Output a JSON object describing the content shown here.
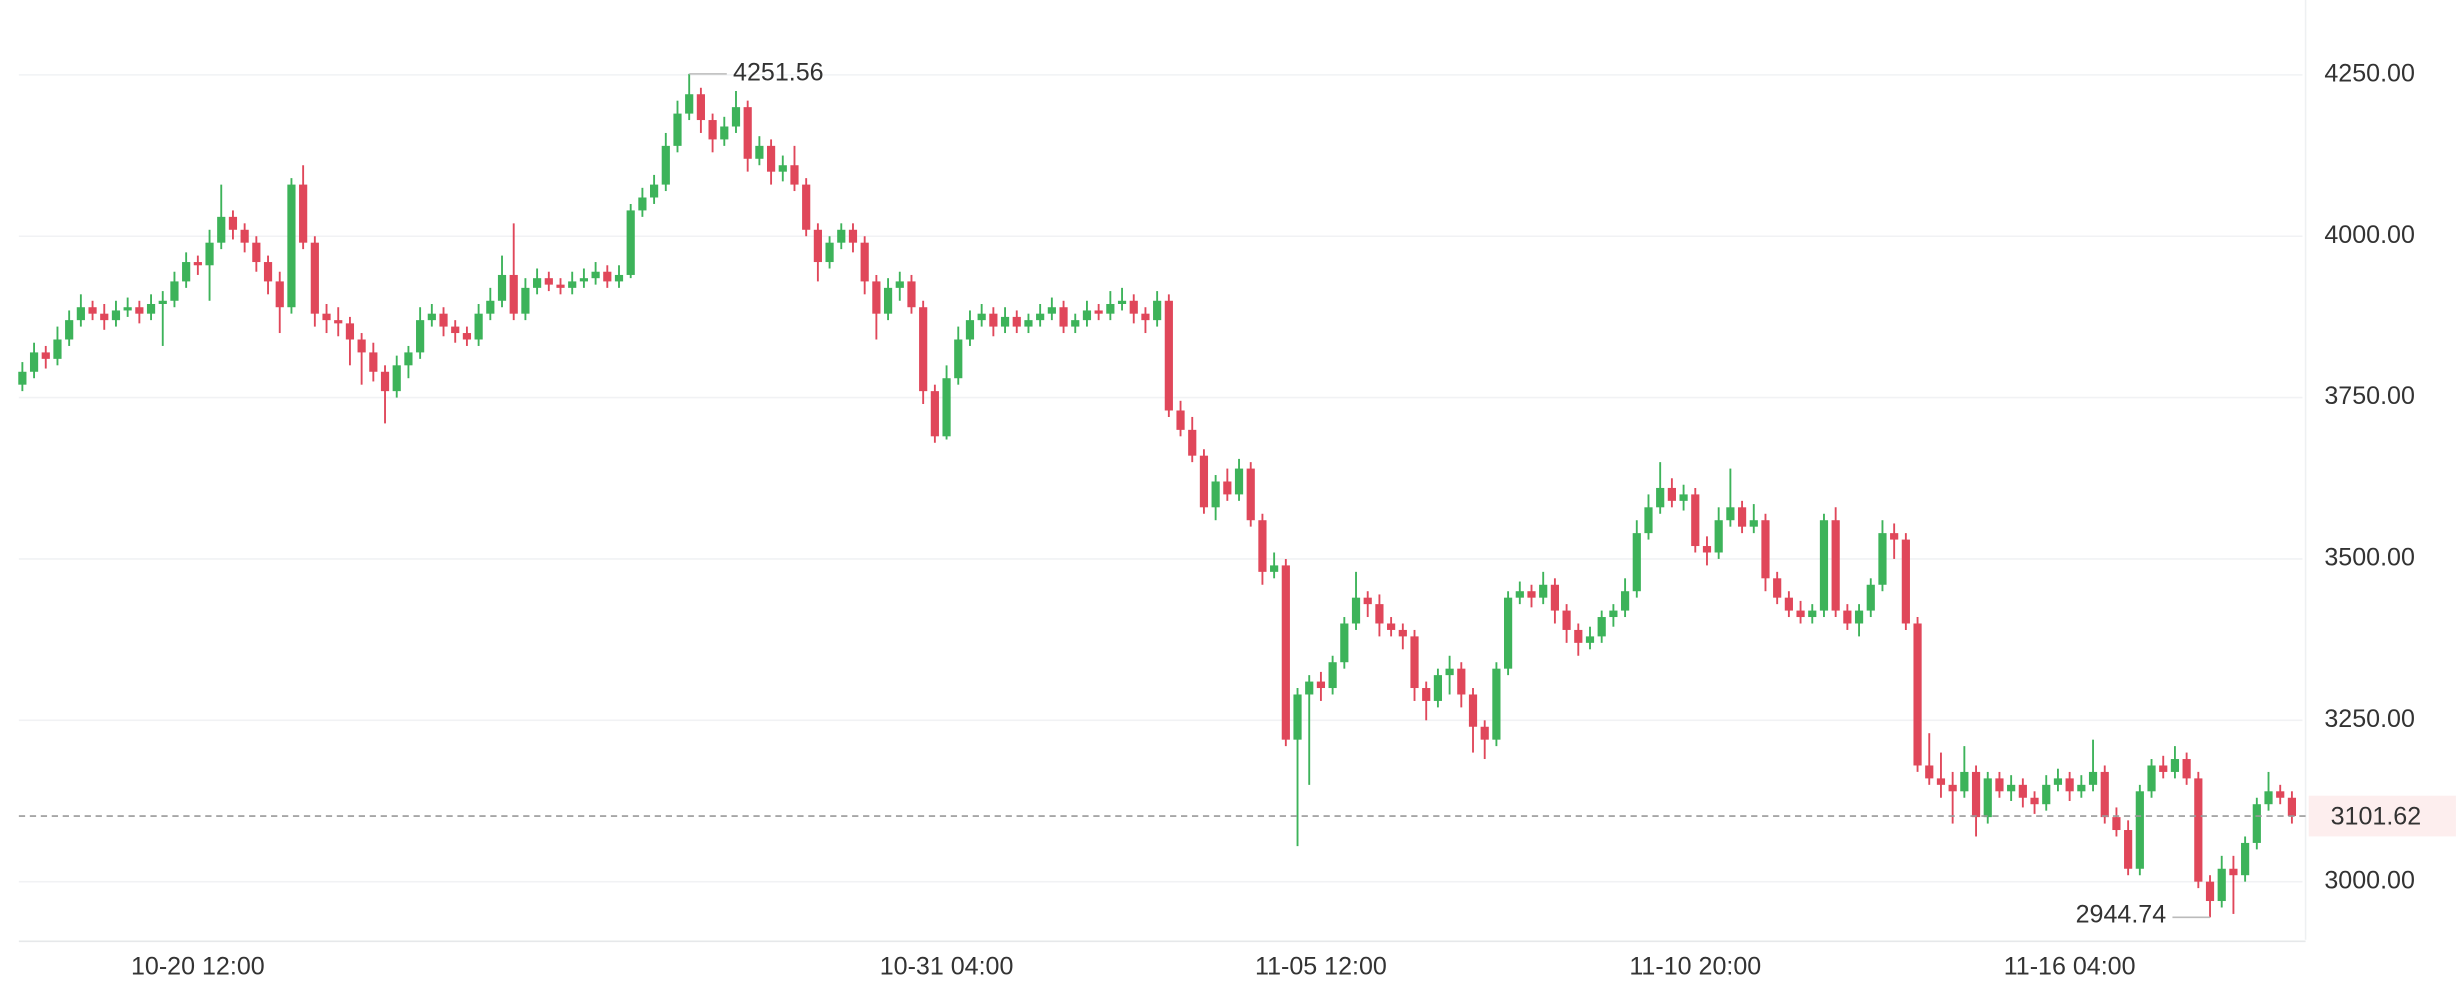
{
  "chart_data": {
    "type": "candlestick",
    "up_color": "#3db35a",
    "down_color": "#e0475a",
    "grid": true,
    "last_price_line": true,
    "xlim": [
      -0.3,
      194.9
    ],
    "ylim": [
      2910,
      4366
    ],
    "yticks": [
      {
        "value": 3000,
        "label": "3000.00"
      },
      {
        "value": 3250,
        "label": "3250.00"
      },
      {
        "value": 3500,
        "label": "3500.00"
      },
      {
        "value": 3750,
        "label": "3750.00"
      },
      {
        "value": 4000,
        "label": "4000.00"
      },
      {
        "value": 4250,
        "label": "4250.00"
      }
    ],
    "xticks": [
      {
        "value": 15,
        "label": "10-20 12:00"
      },
      {
        "value": 79,
        "label": "10-31 04:00"
      },
      {
        "value": 111,
        "label": "11-05 12:00"
      },
      {
        "value": 143,
        "label": "11-10 20:00"
      },
      {
        "value": 175,
        "label": "11-16 04:00"
      }
    ],
    "ohlc": [
      [
        3770,
        3805,
        3760,
        3790
      ],
      [
        3790,
        3835,
        3780,
        3820
      ],
      [
        3820,
        3830,
        3795,
        3810
      ],
      [
        3810,
        3860,
        3800,
        3840
      ],
      [
        3840,
        3885,
        3830,
        3870
      ],
      [
        3870,
        3910,
        3860,
        3890
      ],
      [
        3890,
        3900,
        3870,
        3880
      ],
      [
        3880,
        3895,
        3855,
        3870
      ],
      [
        3870,
        3900,
        3860,
        3885
      ],
      [
        3885,
        3905,
        3875,
        3890
      ],
      [
        3890,
        3900,
        3865,
        3880
      ],
      [
        3880,
        3910,
        3870,
        3895
      ],
      [
        3895,
        3915,
        3830,
        3900
      ],
      [
        3900,
        3945,
        3890,
        3930
      ],
      [
        3930,
        3975,
        3920,
        3960
      ],
      [
        3960,
        3970,
        3940,
        3955
      ],
      [
        3955,
        4010,
        3900,
        3990
      ],
      [
        3990,
        4080,
        3980,
        4030
      ],
      [
        4030,
        4040,
        3995,
        4010
      ],
      [
        4010,
        4020,
        3975,
        3990
      ],
      [
        3990,
        4000,
        3945,
        3960
      ],
      [
        3960,
        3970,
        3910,
        3930
      ],
      [
        3930,
        3945,
        3850,
        3890
      ],
      [
        3890,
        4090,
        3880,
        4080
      ],
      [
        4080,
        4110,
        3980,
        3990
      ],
      [
        3990,
        4000,
        3860,
        3880
      ],
      [
        3880,
        3895,
        3850,
        3870
      ],
      [
        3870,
        3890,
        3845,
        3865
      ],
      [
        3865,
        3875,
        3800,
        3840
      ],
      [
        3840,
        3850,
        3770,
        3820
      ],
      [
        3820,
        3835,
        3775,
        3790
      ],
      [
        3790,
        3800,
        3710,
        3760
      ],
      [
        3760,
        3815,
        3750,
        3800
      ],
      [
        3800,
        3830,
        3780,
        3820
      ],
      [
        3820,
        3890,
        3810,
        3870
      ],
      [
        3870,
        3895,
        3860,
        3880
      ],
      [
        3880,
        3890,
        3845,
        3860
      ],
      [
        3860,
        3870,
        3835,
        3850
      ],
      [
        3850,
        3860,
        3830,
        3840
      ],
      [
        3840,
        3895,
        3830,
        3880
      ],
      [
        3880,
        3920,
        3870,
        3900
      ],
      [
        3900,
        3970,
        3890,
        3940
      ],
      [
        3940,
        4020,
        3870,
        3880
      ],
      [
        3880,
        3935,
        3870,
        3920
      ],
      [
        3920,
        3950,
        3910,
        3935
      ],
      [
        3935,
        3945,
        3915,
        3925
      ],
      [
        3925,
        3935,
        3910,
        3920
      ],
      [
        3920,
        3945,
        3910,
        3930
      ],
      [
        3930,
        3950,
        3920,
        3935
      ],
      [
        3935,
        3960,
        3925,
        3945
      ],
      [
        3945,
        3955,
        3920,
        3930
      ],
      [
        3930,
        3955,
        3920,
        3940
      ],
      [
        3940,
        4050,
        3935,
        4040
      ],
      [
        4040,
        4075,
        4030,
        4060
      ],
      [
        4060,
        4095,
        4050,
        4080
      ],
      [
        4080,
        4160,
        4070,
        4140
      ],
      [
        4140,
        4210,
        4130,
        4190
      ],
      [
        4190,
        4251.56,
        4180,
        4220
      ],
      [
        4220,
        4230,
        4160,
        4180
      ],
      [
        4180,
        4190,
        4130,
        4150
      ],
      [
        4150,
        4185,
        4140,
        4170
      ],
      [
        4170,
        4225,
        4160,
        4200
      ],
      [
        4200,
        4210,
        4100,
        4120
      ],
      [
        4120,
        4155,
        4110,
        4140
      ],
      [
        4140,
        4150,
        4080,
        4100
      ],
      [
        4100,
        4125,
        4085,
        4110
      ],
      [
        4110,
        4140,
        4070,
        4080
      ],
      [
        4080,
        4090,
        4000,
        4010
      ],
      [
        4010,
        4020,
        3930,
        3960
      ],
      [
        3960,
        4000,
        3950,
        3990
      ],
      [
        3990,
        4020,
        3980,
        4010
      ],
      [
        4010,
        4020,
        3975,
        3990
      ],
      [
        3990,
        4000,
        3910,
        3930
      ],
      [
        3930,
        3940,
        3840,
        3880
      ],
      [
        3880,
        3935,
        3870,
        3920
      ],
      [
        3920,
        3945,
        3900,
        3930
      ],
      [
        3930,
        3940,
        3880,
        3890
      ],
      [
        3890,
        3900,
        3740,
        3760
      ],
      [
        3760,
        3770,
        3680,
        3690
      ],
      [
        3690,
        3800,
        3685,
        3780
      ],
      [
        3780,
        3860,
        3770,
        3840
      ],
      [
        3840,
        3885,
        3830,
        3870
      ],
      [
        3870,
        3895,
        3860,
        3880
      ],
      [
        3880,
        3890,
        3845,
        3860
      ],
      [
        3860,
        3890,
        3850,
        3875
      ],
      [
        3875,
        3885,
        3850,
        3860
      ],
      [
        3860,
        3880,
        3850,
        3870
      ],
      [
        3870,
        3895,
        3860,
        3880
      ],
      [
        3880,
        3905,
        3870,
        3890
      ],
      [
        3890,
        3900,
        3850,
        3860
      ],
      [
        3860,
        3880,
        3850,
        3870
      ],
      [
        3870,
        3900,
        3860,
        3885
      ],
      [
        3885,
        3895,
        3870,
        3880
      ],
      [
        3880,
        3915,
        3870,
        3895
      ],
      [
        3895,
        3920,
        3885,
        3900
      ],
      [
        3900,
        3910,
        3865,
        3880
      ],
      [
        3880,
        3890,
        3850,
        3870
      ],
      [
        3870,
        3915,
        3860,
        3900
      ],
      [
        3900,
        3910,
        3720,
        3730
      ],
      [
        3730,
        3745,
        3690,
        3700
      ],
      [
        3700,
        3720,
        3650,
        3660
      ],
      [
        3660,
        3670,
        3570,
        3580
      ],
      [
        3580,
        3630,
        3560,
        3620
      ],
      [
        3620,
        3640,
        3590,
        3600
      ],
      [
        3600,
        3655,
        3590,
        3640
      ],
      [
        3640,
        3650,
        3550,
        3560
      ],
      [
        3560,
        3570,
        3460,
        3480
      ],
      [
        3480,
        3510,
        3470,
        3490
      ],
      [
        3490,
        3500,
        3210,
        3220
      ],
      [
        3220,
        3300,
        3055,
        3290
      ],
      [
        3290,
        3320,
        3150,
        3310
      ],
      [
        3310,
        3325,
        3280,
        3300
      ],
      [
        3300,
        3350,
        3290,
        3340
      ],
      [
        3340,
        3410,
        3330,
        3400
      ],
      [
        3400,
        3480,
        3390,
        3440
      ],
      [
        3440,
        3450,
        3410,
        3430
      ],
      [
        3430,
        3445,
        3380,
        3400
      ],
      [
        3400,
        3410,
        3380,
        3390
      ],
      [
        3390,
        3400,
        3360,
        3380
      ],
      [
        3380,
        3390,
        3280,
        3300
      ],
      [
        3300,
        3310,
        3250,
        3280
      ],
      [
        3280,
        3330,
        3270,
        3320
      ],
      [
        3320,
        3350,
        3290,
        3330
      ],
      [
        3330,
        3340,
        3270,
        3290
      ],
      [
        3290,
        3300,
        3200,
        3240
      ],
      [
        3240,
        3250,
        3190,
        3220
      ],
      [
        3220,
        3340,
        3210,
        3330
      ],
      [
        3330,
        3450,
        3320,
        3440
      ],
      [
        3440,
        3465,
        3430,
        3450
      ],
      [
        3450,
        3460,
        3425,
        3440
      ],
      [
        3440,
        3480,
        3430,
        3460
      ],
      [
        3460,
        3470,
        3400,
        3420
      ],
      [
        3420,
        3430,
        3370,
        3390
      ],
      [
        3390,
        3400,
        3350,
        3370
      ],
      [
        3370,
        3395,
        3360,
        3380
      ],
      [
        3380,
        3420,
        3370,
        3410
      ],
      [
        3410,
        3430,
        3395,
        3420
      ],
      [
        3420,
        3470,
        3410,
        3450
      ],
      [
        3450,
        3560,
        3440,
        3540
      ],
      [
        3540,
        3600,
        3530,
        3580
      ],
      [
        3580,
        3650,
        3570,
        3610
      ],
      [
        3610,
        3625,
        3580,
        3590
      ],
      [
        3590,
        3615,
        3575,
        3600
      ],
      [
        3600,
        3610,
        3510,
        3520
      ],
      [
        3520,
        3535,
        3490,
        3510
      ],
      [
        3510,
        3580,
        3500,
        3560
      ],
      [
        3560,
        3640,
        3550,
        3580
      ],
      [
        3580,
        3590,
        3540,
        3550
      ],
      [
        3550,
        3585,
        3540,
        3560
      ],
      [
        3560,
        3570,
        3450,
        3470
      ],
      [
        3470,
        3480,
        3430,
        3440
      ],
      [
        3440,
        3450,
        3410,
        3420
      ],
      [
        3420,
        3435,
        3400,
        3410
      ],
      [
        3410,
        3430,
        3400,
        3420
      ],
      [
        3420,
        3570,
        3410,
        3560
      ],
      [
        3560,
        3580,
        3410,
        3420
      ],
      [
        3420,
        3430,
        3390,
        3400
      ],
      [
        3400,
        3430,
        3380,
        3420
      ],
      [
        3420,
        3470,
        3410,
        3460
      ],
      [
        3460,
        3560,
        3450,
        3540
      ],
      [
        3540,
        3555,
        3500,
        3530
      ],
      [
        3530,
        3540,
        3390,
        3400
      ],
      [
        3400,
        3410,
        3170,
        3180
      ],
      [
        3180,
        3230,
        3150,
        3160
      ],
      [
        3160,
        3200,
        3130,
        3150
      ],
      [
        3150,
        3170,
        3090,
        3140
      ],
      [
        3140,
        3210,
        3130,
        3170
      ],
      [
        3170,
        3180,
        3070,
        3100
      ],
      [
        3100,
        3170,
        3090,
        3160
      ],
      [
        3160,
        3170,
        3130,
        3140
      ],
      [
        3140,
        3165,
        3125,
        3150
      ],
      [
        3150,
        3160,
        3115,
        3130
      ],
      [
        3130,
        3140,
        3105,
        3120
      ],
      [
        3120,
        3165,
        3110,
        3150
      ],
      [
        3150,
        3175,
        3140,
        3160
      ],
      [
        3160,
        3170,
        3125,
        3140
      ],
      [
        3140,
        3165,
        3130,
        3150
      ],
      [
        3150,
        3220,
        3140,
        3170
      ],
      [
        3170,
        3180,
        3090,
        3100
      ],
      [
        3100,
        3115,
        3070,
        3080
      ],
      [
        3080,
        3095,
        3010,
        3020
      ],
      [
        3020,
        3150,
        3010,
        3140
      ],
      [
        3140,
        3190,
        3130,
        3180
      ],
      [
        3180,
        3195,
        3160,
        3170
      ],
      [
        3170,
        3210,
        3160,
        3190
      ],
      [
        3190,
        3200,
        3150,
        3160
      ],
      [
        3160,
        3170,
        2990,
        3000
      ],
      [
        3000,
        3010,
        2944.74,
        2970
      ],
      [
        2970,
        3040,
        2960,
        3020
      ],
      [
        3020,
        3040,
        2950,
        3010
      ],
      [
        3010,
        3070,
        3000,
        3060
      ],
      [
        3060,
        3130,
        3050,
        3120
      ],
      [
        3120,
        3170,
        3110,
        3140
      ],
      [
        3140,
        3150,
        3120,
        3130
      ],
      [
        3130,
        3140,
        3090,
        3101.62
      ]
    ]
  }
}
